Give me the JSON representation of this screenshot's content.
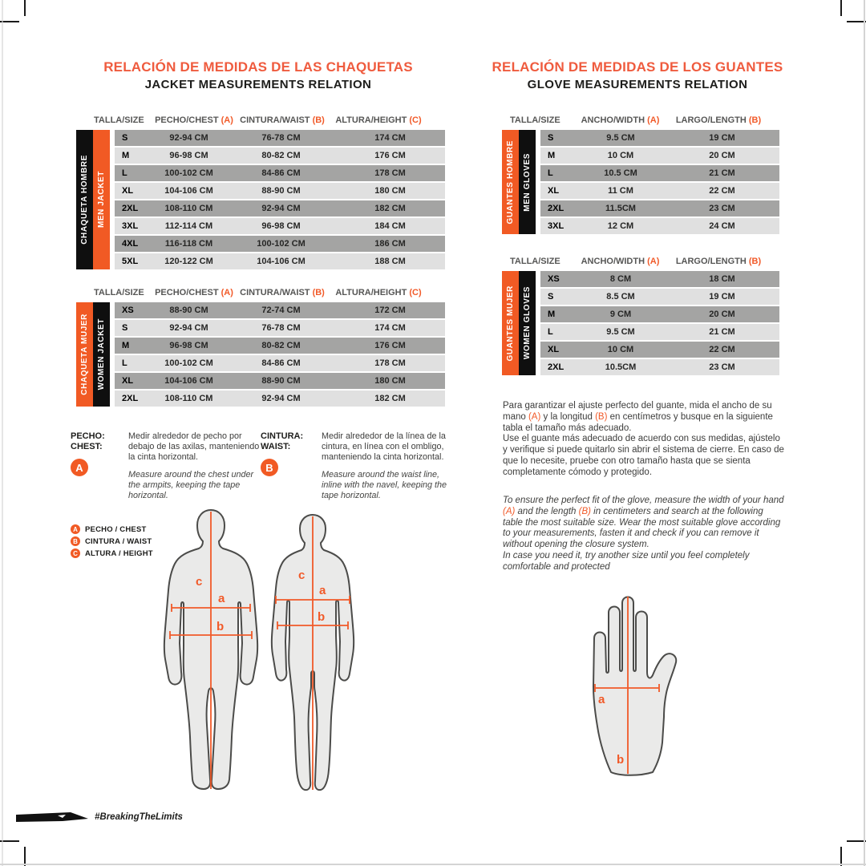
{
  "colors": {
    "accent_orange": "#F15A24",
    "title_orange": "#EF5B3E",
    "band_black": "#0f0f0f",
    "row_dark": "#A4A4A3",
    "row_light": "#E0E0E0"
  },
  "jackets": {
    "title_es": "RELACIÓN DE MEDIDAS DE LAS CHAQUETAS",
    "title_en": "JACKET MEASUREMENTS RELATION",
    "headers": [
      "TALLA/SIZE",
      "PECHO/CHEST (A)",
      "CINTURA/WAIST (B)",
      "ALTURA/HEIGHT (C)"
    ],
    "men": {
      "band_es": "CHAQUETA HOMBRE",
      "band_en": "MEN JACKET",
      "rows": [
        [
          "S",
          "92-94 CM",
          "76-78 CM",
          "174 CM"
        ],
        [
          "M",
          "96-98 CM",
          "80-82 CM",
          "176 CM"
        ],
        [
          "L",
          "100-102 CM",
          "84-86 CM",
          "178 CM"
        ],
        [
          "XL",
          "104-106 CM",
          "88-90 CM",
          "180 CM"
        ],
        [
          "2XL",
          "108-110 CM",
          "92-94 CM",
          "182 CM"
        ],
        [
          "3XL",
          "112-114 CM",
          "96-98 CM",
          "184 CM"
        ],
        [
          "4XL",
          "116-118 CM",
          "100-102 CM",
          "186 CM"
        ],
        [
          "5XL",
          "120-122 CM",
          "104-106 CM",
          "188 CM"
        ]
      ]
    },
    "women": {
      "band_es": "CHAQUETA MUJER",
      "band_en": "WOMEN JACKET",
      "rows": [
        [
          "XS",
          "88-90 CM",
          "72-74 CM",
          "172 CM"
        ],
        [
          "S",
          "92-94 CM",
          "76-78 CM",
          "174 CM"
        ],
        [
          "M",
          "96-98 CM",
          "80-82 CM",
          "176 CM"
        ],
        [
          "L",
          "100-102 CM",
          "84-86 CM",
          "178 CM"
        ],
        [
          "XL",
          "104-106 CM",
          "88-90 CM",
          "180 CM"
        ],
        [
          "2XL",
          "108-110 CM",
          "92-94 CM",
          "182 CM"
        ]
      ]
    }
  },
  "gloves": {
    "title_es": "RELACIÓN DE MEDIDAS DE LOS GUANTES",
    "title_en": "GLOVE MEASUREMENTS RELATION",
    "headers": [
      "TALLA/SIZE",
      "ANCHO/WIDTH (A)",
      "LARGO/LENGTH (B)"
    ],
    "men": {
      "band_es": "GUANTES HOMBRE",
      "band_en": "MEN GLOVES",
      "rows": [
        [
          "S",
          "9.5 CM",
          "19 CM"
        ],
        [
          "M",
          "10 CM",
          "20 CM"
        ],
        [
          "L",
          "10.5 CM",
          "21 CM"
        ],
        [
          "XL",
          "11 CM",
          "22 CM"
        ],
        [
          "2XL",
          "11.5CM",
          "23 CM"
        ],
        [
          "3XL",
          "12 CM",
          "24 CM"
        ]
      ]
    },
    "women": {
      "band_es": "GUANTES MUJER",
      "band_en": "WOMEN GLOVES",
      "rows": [
        [
          "XS",
          "8 CM",
          "18 CM"
        ],
        [
          "S",
          "8.5 CM",
          "19 CM"
        ],
        [
          "M",
          "9 CM",
          "20 CM"
        ],
        [
          "L",
          "9.5 CM",
          "21 CM"
        ],
        [
          "XL",
          "10 CM",
          "22 CM"
        ],
        [
          "2XL",
          "10.5CM",
          "23 CM"
        ]
      ]
    }
  },
  "instructions": {
    "chest": {
      "label_es": "PECHO:",
      "label_en": "CHEST:",
      "marker": "A",
      "text_es": "Medir alrededor de pecho por debajo de las axilas, manteniendo la cinta horizontal.",
      "text_en": "Measure around the chest under the armpits, keeping the tape horizontal."
    },
    "waist": {
      "label_es": "CINTURA:",
      "label_en": "WAIST:",
      "marker": "B",
      "text_es": "Medir alrededor de la línea de la cintura, en línea con el ombligo, manteniendo la cinta horizontal.",
      "text_en": "Measure around the waist line, inline with the navel, keeping the tape horizontal."
    }
  },
  "legend": [
    {
      "letter": "A",
      "label": "PECHO / CHEST"
    },
    {
      "letter": "B",
      "label": "CINTURA / WAIST"
    },
    {
      "letter": "C",
      "label": "ALTURA / HEIGHT"
    }
  ],
  "glove_fit": {
    "es1": "Para garantizar el ajuste perfecto del guante, mida el ancho de su mano (A) y la longitud (B) en centímetros y busque en la siguiente tabla el tamaño más adecuado.",
    "es2": "Use el guante más adecuado de acuerdo con sus medidas, ajústelo y verifique si puede quitarlo sin abrir el sistema de cierre. En caso de que lo necesite, pruebe con otro tamaño hasta que se sienta completamente cómodo y protegido.",
    "en1": "To ensure the perfect fit of the glove, measure the width of your hand (A) and the length (B) in centimeters and search at the following table the most suitable size. Wear the most suitable glove according to your measurements, fasten it and check if you can remove it without opening the closure system.",
    "en2": "In case you need it, try another size until you feel completely comfortable and protected"
  },
  "diagram_labels": {
    "height": "c",
    "chest": "a",
    "waist": "b",
    "hand_width": "a",
    "hand_length": "b"
  },
  "footer": {
    "hashtag": "#BreakingTheLimits"
  }
}
